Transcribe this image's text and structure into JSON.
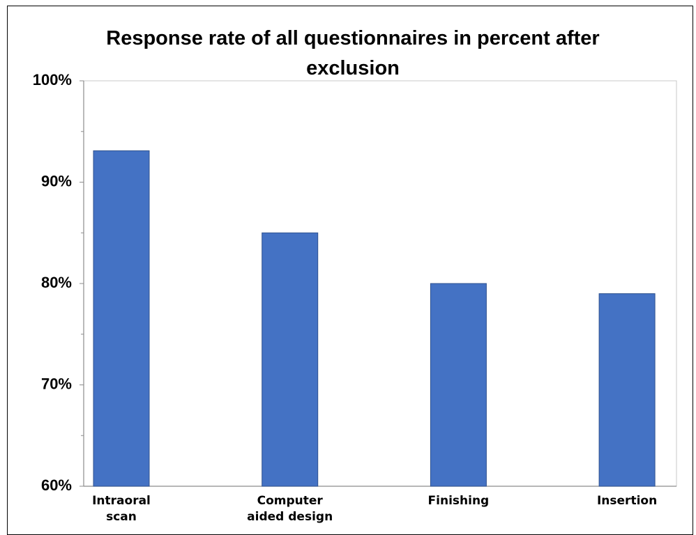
{
  "chart_data": {
    "type": "bar",
    "title": "Response rate of all questionnaires in percent after exclusion",
    "categories": [
      "Intraoral scan",
      "Computer aided design",
      "Finishing",
      "Insertion"
    ],
    "values": [
      93.1,
      85,
      80,
      79
    ],
    "color": "#4472c4",
    "ylim": [
      60,
      100
    ],
    "yticks": [
      {
        "value": 60,
        "label": "60%"
      },
      {
        "value": 70,
        "label": "70%"
      },
      {
        "value": 80,
        "label": "80%"
      },
      {
        "value": 90,
        "label": "90%"
      },
      {
        "value": 100,
        "label": "100%"
      }
    ],
    "minor_yticks": [
      65,
      75,
      85,
      95
    ],
    "grid": false
  }
}
